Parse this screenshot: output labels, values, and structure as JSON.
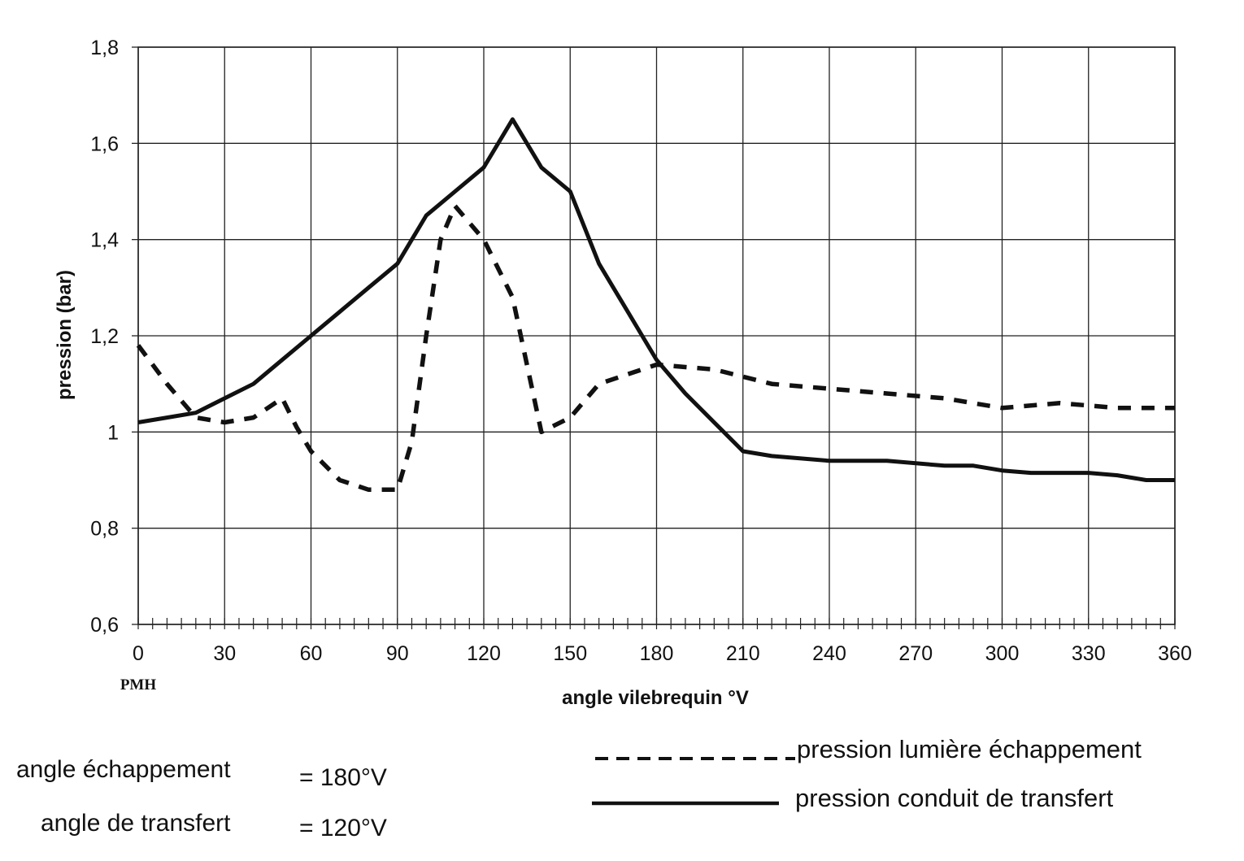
{
  "chart_data": {
    "type": "line",
    "title": "",
    "xlabel": "angle vilebrequin °V",
    "ylabel": "pression (bar)",
    "xlim": [
      0,
      360
    ],
    "ylim": [
      0.6,
      1.8
    ],
    "x_ticks": [
      0,
      30,
      60,
      90,
      120,
      150,
      180,
      210,
      240,
      270,
      300,
      330,
      360
    ],
    "y_ticks": [
      0.6,
      0.8,
      1,
      1.2,
      1.4,
      1.6,
      1.8
    ],
    "y_tick_labels": [
      "0,6",
      "0,8",
      "1",
      "1,2",
      "1,4",
      "1,6",
      "1,8"
    ],
    "x_extra_label": "PMH",
    "grid": true,
    "legend_position": "bottom-right",
    "series": [
      {
        "name": "pression lumière échappement",
        "style": "dashed",
        "color": "#111111",
        "x": [
          0,
          10,
          20,
          30,
          40,
          50,
          55,
          60,
          70,
          80,
          90,
          95,
          100,
          105,
          110,
          120,
          130,
          135,
          140,
          150,
          160,
          170,
          180,
          200,
          220,
          240,
          260,
          280,
          300,
          320,
          340,
          360
        ],
        "y": [
          1.18,
          1.1,
          1.03,
          1.02,
          1.03,
          1.07,
          1.01,
          0.96,
          0.9,
          0.88,
          0.88,
          0.98,
          1.2,
          1.4,
          1.47,
          1.4,
          1.28,
          1.14,
          1.0,
          1.03,
          1.1,
          1.12,
          1.14,
          1.13,
          1.1,
          1.09,
          1.08,
          1.07,
          1.05,
          1.06,
          1.05,
          1.05
        ]
      },
      {
        "name": "pression conduit de transfert",
        "style": "solid",
        "color": "#111111",
        "x": [
          0,
          10,
          20,
          30,
          40,
          50,
          60,
          70,
          80,
          90,
          100,
          110,
          120,
          130,
          140,
          150,
          160,
          170,
          180,
          190,
          200,
          210,
          220,
          240,
          260,
          280,
          290,
          300,
          310,
          330,
          340,
          350,
          360
        ],
        "y": [
          1.02,
          1.03,
          1.04,
          1.07,
          1.1,
          1.15,
          1.2,
          1.25,
          1.3,
          1.35,
          1.45,
          1.5,
          1.55,
          1.65,
          1.55,
          1.5,
          1.35,
          1.25,
          1.15,
          1.08,
          1.02,
          0.96,
          0.95,
          0.94,
          0.94,
          0.93,
          0.93,
          0.92,
          0.915,
          0.915,
          0.91,
          0.9,
          0.9
        ]
      }
    ]
  },
  "notes": {
    "angle_echappement_label": "angle échappement",
    "angle_echappement_value": "= 180°V",
    "angle_transfert_label": "angle de transfert",
    "angle_transfert_value": "= 120°V"
  }
}
